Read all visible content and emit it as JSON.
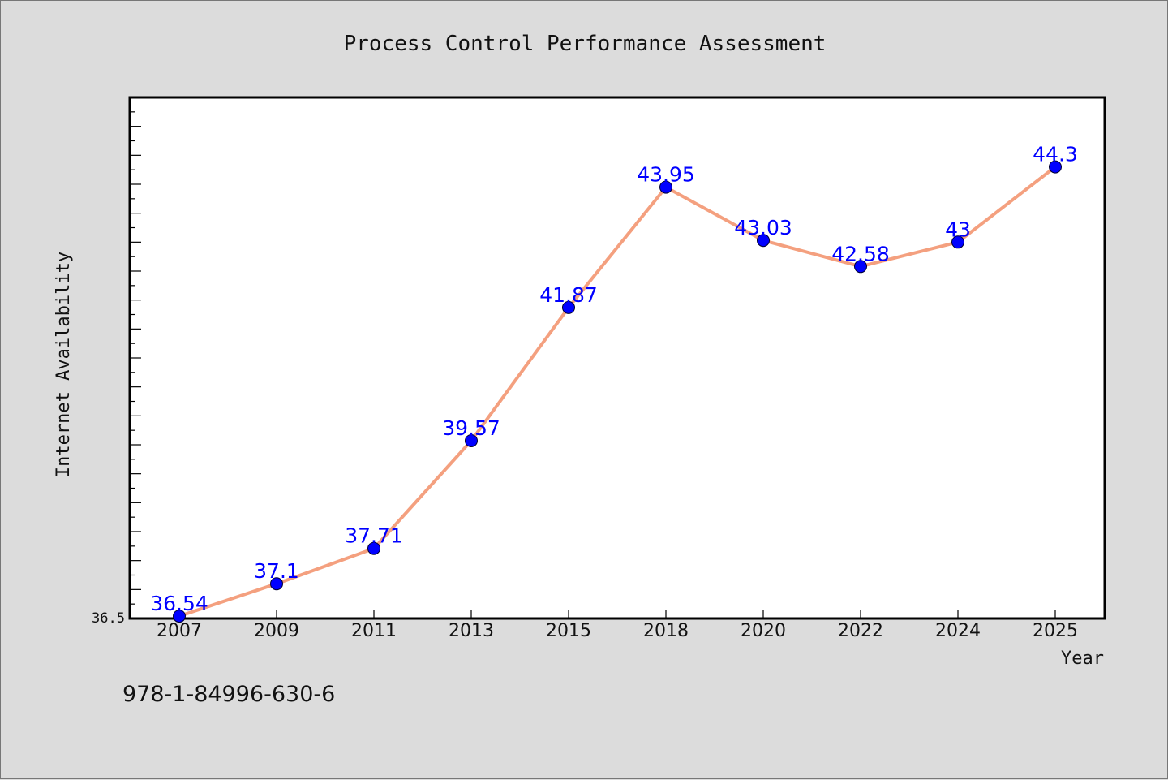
{
  "chart_data": {
    "type": "line",
    "title": "Process Control Performance Assessment",
    "xlabel": "Year",
    "ylabel": "Internet Availability",
    "categories": [
      "2007",
      "2009",
      "2011",
      "2013",
      "2015",
      "2018",
      "2020",
      "2022",
      "2024",
      "2025"
    ],
    "series": [
      {
        "values": [
          36.54,
          37.1,
          37.71,
          39.57,
          41.87,
          43.95,
          43.03,
          42.58,
          43,
          44.3
        ]
      }
    ],
    "data_labels": [
      "36.54",
      "37.1",
      "37.71",
      "39.57",
      "41.87",
      "43.95",
      "43.03",
      "42.58",
      "43",
      "44.3"
    ],
    "y_tick_label": "36.5",
    "ylim": [
      36.5,
      45.5
    ],
    "grid": false,
    "line_color": "#f4a07f",
    "marker_color": "#0000ff",
    "label_color": "#0000ff"
  },
  "footer": {
    "isbn": "978-1-84996-630-6"
  }
}
